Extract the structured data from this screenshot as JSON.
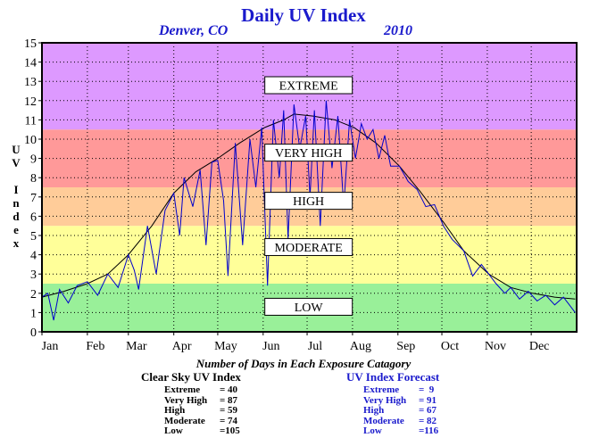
{
  "title": "Daily UV Index",
  "location": "Denver, CO",
  "year": "2010",
  "ylabel": "UV Index",
  "summary_title": "Number of Days in Each Exposure Catagory",
  "clear_sky": {
    "title": "Clear Sky UV Index",
    "rows": [
      {
        "label": "Extreme",
        "value": "= 40"
      },
      {
        "label": "Very High",
        "value": "= 87"
      },
      {
        "label": "High",
        "value": "= 59"
      },
      {
        "label": "Moderate",
        "value": "= 74"
      },
      {
        "label": "Low",
        "value": "=105"
      }
    ]
  },
  "forecast": {
    "title": "UV Index Forecast",
    "rows": [
      {
        "label": "Extreme",
        "value": "=  9"
      },
      {
        "label": "Very High",
        "value": "= 91"
      },
      {
        "label": "High",
        "value": "= 67"
      },
      {
        "label": "Moderate",
        "value": "= 82"
      },
      {
        "label": "Low",
        "value": "=116"
      }
    ]
  },
  "chart_data": {
    "type": "line",
    "xlim": [
      0,
      365
    ],
    "ylim": [
      0,
      15
    ],
    "grid": true,
    "yticks": [
      0,
      1,
      2,
      3,
      4,
      5,
      6,
      7,
      8,
      9,
      10,
      11,
      12,
      13,
      14,
      15
    ],
    "months": [
      "Jan",
      "Feb",
      "Mar",
      "Apr",
      "May",
      "Jun",
      "Jul",
      "Aug",
      "Sep",
      "Oct",
      "Nov",
      "Dec"
    ],
    "bands": [
      {
        "label": "LOW",
        "from": 0,
        "to": 2.5,
        "color": "#99f099",
        "label_y": 1.3
      },
      {
        "label": "MODERATE",
        "from": 2.5,
        "to": 5.5,
        "color": "#ffff99",
        "label_y": 4.4
      },
      {
        "label": "HIGH",
        "from": 5.5,
        "to": 7.5,
        "color": "#ffcc99",
        "label_y": 6.8
      },
      {
        "label": "VERY HIGH",
        "from": 7.5,
        "to": 10.5,
        "color": "#ff9999",
        "label_y": 9.3
      },
      {
        "label": "EXTREME",
        "from": 10.5,
        "to": 15,
        "color": "#dd99ff",
        "label_y": 12.8
      }
    ],
    "series": [
      {
        "role": "clear-sky",
        "color": "#000000",
        "x": [
          0,
          15,
          31,
          45,
          59,
          75,
          90,
          105,
          120,
          135,
          152,
          165,
          172,
          185,
          200,
          213,
          228,
          244,
          258,
          274,
          288,
          305,
          320,
          335,
          350,
          364
        ],
        "y": [
          1.8,
          2.1,
          2.5,
          3.0,
          4.0,
          5.5,
          7.2,
          8.3,
          9.0,
          9.8,
          10.6,
          11.0,
          11.3,
          11.2,
          11.0,
          10.6,
          9.8,
          8.6,
          7.3,
          5.7,
          4.2,
          3.0,
          2.3,
          2.0,
          1.8,
          1.7
        ]
      },
      {
        "role": "forecast",
        "color": "#0000cc",
        "x": [
          0,
          4,
          8,
          12,
          18,
          24,
          31,
          38,
          45,
          52,
          59,
          63,
          66,
          72,
          78,
          84,
          90,
          94,
          97,
          103,
          108,
          112,
          116,
          120,
          124,
          127,
          132,
          137,
          142,
          146,
          150,
          154,
          158,
          162,
          165,
          168,
          172,
          176,
          180,
          183,
          186,
          190,
          194,
          198,
          202,
          206,
          210,
          214,
          218,
          222,
          226,
          230,
          234,
          238,
          244,
          250,
          256,
          262,
          268,
          274,
          280,
          288,
          294,
          300,
          305,
          310,
          316,
          320,
          326,
          332,
          338,
          344,
          350,
          356,
          364
        ],
        "y": [
          1.8,
          2.0,
          0.6,
          2.2,
          1.5,
          2.4,
          2.6,
          1.9,
          3.0,
          2.3,
          4.0,
          3.2,
          2.2,
          5.5,
          3.0,
          6.3,
          7.2,
          5.0,
          8.0,
          6.5,
          8.4,
          4.5,
          8.8,
          8.9,
          6.8,
          2.9,
          9.8,
          4.5,
          10.0,
          7.5,
          10.6,
          2.4,
          11.0,
          8.0,
          11.5,
          4.8,
          11.8,
          9.5,
          11.2,
          7.0,
          11.5,
          5.5,
          12.0,
          8.5,
          11.2,
          6.5,
          11.0,
          9.0,
          10.8,
          10.0,
          10.5,
          9.0,
          10.2,
          8.6,
          8.6,
          7.8,
          7.4,
          6.5,
          6.6,
          5.5,
          4.8,
          4.2,
          2.9,
          3.5,
          3.0,
          2.5,
          2.0,
          2.3,
          1.7,
          2.1,
          1.6,
          1.9,
          1.4,
          1.8,
          1.0
        ]
      }
    ]
  }
}
